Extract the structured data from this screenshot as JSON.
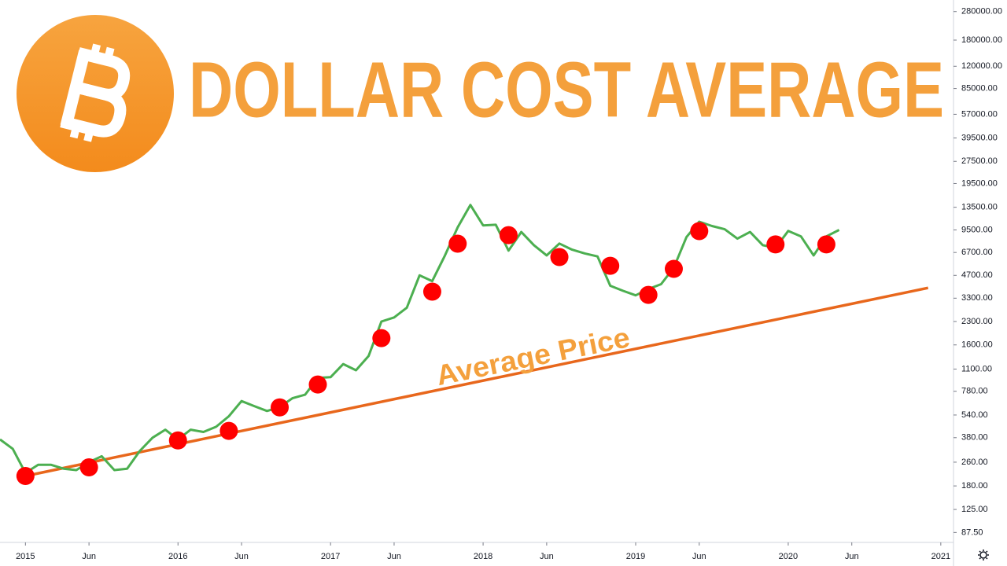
{
  "chart_data": {
    "type": "line",
    "title": "DOLLAR COST AVERAGE",
    "annotation": "Average Price",
    "log_scale": true,
    "xlim": [
      "2014-11",
      "2021-02"
    ],
    "ylim": [
      75,
      335000
    ],
    "xticks": [
      {
        "value": "2015-01",
        "label": "2015"
      },
      {
        "value": "2015-06",
        "label": "Jun"
      },
      {
        "value": "2016-01",
        "label": "2016"
      },
      {
        "value": "2016-06",
        "label": "Jun"
      },
      {
        "value": "2017-01",
        "label": "2017"
      },
      {
        "value": "2017-06",
        "label": "Jun"
      },
      {
        "value": "2018-01",
        "label": "2018"
      },
      {
        "value": "2018-06",
        "label": "Jun"
      },
      {
        "value": "2019-01",
        "label": "2019"
      },
      {
        "value": "2019-06",
        "label": "Jun"
      },
      {
        "value": "2020-01",
        "label": "2020"
      },
      {
        "value": "2020-06",
        "label": "Jun"
      },
      {
        "value": "2021-01",
        "label": "2021"
      }
    ],
    "yticks": [
      {
        "value": 280000,
        "label": "280000.00"
      },
      {
        "value": 180000,
        "label": "180000.00"
      },
      {
        "value": 120000,
        "label": "120000.00"
      },
      {
        "value": 85000,
        "label": "85000.00"
      },
      {
        "value": 57000,
        "label": "57000.00"
      },
      {
        "value": 39500,
        "label": "39500.00"
      },
      {
        "value": 27500,
        "label": "27500.00"
      },
      {
        "value": 19500,
        "label": "19500.00"
      },
      {
        "value": 13500,
        "label": "13500.00"
      },
      {
        "value": 9500,
        "label": "9500.00"
      },
      {
        "value": 6700,
        "label": "6700.00"
      },
      {
        "value": 4700,
        "label": "4700.00"
      },
      {
        "value": 3300,
        "label": "3300.00"
      },
      {
        "value": 2300,
        "label": "2300.00"
      },
      {
        "value": 1600,
        "label": "1600.00"
      },
      {
        "value": 1100,
        "label": "1100.00"
      },
      {
        "value": 780,
        "label": "780.00"
      },
      {
        "value": 540,
        "label": "540.00"
      },
      {
        "value": 380,
        "label": "380.00"
      },
      {
        "value": 260,
        "label": "260.00"
      },
      {
        "value": 180,
        "label": "180.00"
      },
      {
        "value": 125,
        "label": "125.00"
      },
      {
        "value": 87.5,
        "label": "87.50"
      }
    ],
    "price": {
      "color": "#4caf50",
      "x": [
        "2014-11",
        "2014-12",
        "2015-01",
        "2015-02",
        "2015-03",
        "2015-04",
        "2015-05",
        "2015-06",
        "2015-07",
        "2015-08",
        "2015-09",
        "2015-10",
        "2015-11",
        "2015-12",
        "2016-01",
        "2016-02",
        "2016-03",
        "2016-04",
        "2016-05",
        "2016-06",
        "2016-07",
        "2016-08",
        "2016-09",
        "2016-10",
        "2016-11",
        "2016-12",
        "2017-01",
        "2017-02",
        "2017-03",
        "2017-04",
        "2017-05",
        "2017-06",
        "2017-07",
        "2017-08",
        "2017-09",
        "2017-10",
        "2017-11",
        "2017-12",
        "2018-01",
        "2018-02",
        "2018-03",
        "2018-04",
        "2018-05",
        "2018-06",
        "2018-07",
        "2018-08",
        "2018-09",
        "2018-10",
        "2018-11",
        "2018-12",
        "2019-01",
        "2019-02",
        "2019-03",
        "2019-04",
        "2019-05",
        "2019-06",
        "2019-07",
        "2019-08",
        "2019-09",
        "2019-10",
        "2019-11",
        "2019-12",
        "2020-01",
        "2020-02",
        "2020-03",
        "2020-04",
        "2020-05"
      ],
      "values": [
        370,
        320,
        220,
        250,
        250,
        235,
        230,
        260,
        285,
        230,
        235,
        310,
        380,
        430,
        370,
        430,
        415,
        450,
        530,
        670,
        620,
        575,
        610,
        700,
        740,
        960,
        970,
        1190,
        1080,
        1350,
        2300,
        2450,
        2850,
        4700,
        4300,
        6400,
        9900,
        14000,
        10200,
        10300,
        6900,
        9200,
        7500,
        6400,
        7700,
        7000,
        6600,
        6300,
        4000,
        3700,
        3450,
        3800,
        4100,
        5300,
        8500,
        10800,
        10100,
        9600,
        8300,
        9200,
        7500,
        7200,
        9350,
        8600,
        6400,
        8600,
        9500
      ]
    },
    "purchases": {
      "color": "#ff0000",
      "x": [
        "2015-01",
        "2015-06",
        "2016-01",
        "2016-05",
        "2016-09",
        "2016-12",
        "2017-05",
        "2017-09",
        "2017-11",
        "2018-03",
        "2018-07",
        "2018-11",
        "2019-02",
        "2019-04",
        "2019-06",
        "2019-12",
        "2020-04"
      ],
      "values": [
        210,
        240,
        364,
        422,
        608,
        866,
        1778,
        3650,
        7680,
        8770,
        6240,
        5450,
        3475,
        5200,
        9330,
        7590,
        7590
      ]
    },
    "average_line": {
      "color": "#e8671c",
      "x": [
        "2015-01",
        "2020-12"
      ],
      "values": [
        210,
        3870
      ]
    }
  }
}
